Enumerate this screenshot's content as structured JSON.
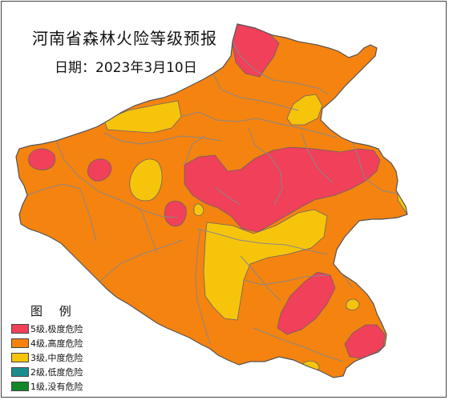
{
  "title": "河南省森林火险等级预报",
  "date_text": "日期：2023年3月10日",
  "legend": {
    "title": "图 例",
    "items": [
      {
        "label": "5级,极度危险",
        "color": "#f0405a",
        "name": "legend-level-5"
      },
      {
        "label": "4级,高度危险",
        "color": "#f5830f",
        "name": "legend-level-4"
      },
      {
        "label": "3级,中度危险",
        "color": "#f7c40c",
        "name": "legend-level-3"
      },
      {
        "label": "2级,低度危险",
        "color": "#1a8d8c",
        "name": "legend-level-2"
      },
      {
        "label": "1级,没有危险",
        "color": "#12872a",
        "name": "legend-level-1"
      }
    ]
  },
  "colors": {
    "level5": "#f0405a",
    "level4": "#f5830f",
    "level3": "#f7c40c",
    "boundary": "#888888",
    "outline": "#555555"
  }
}
